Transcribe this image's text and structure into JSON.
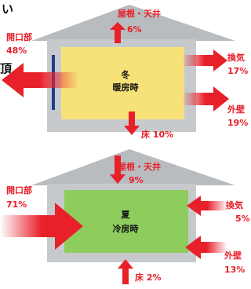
{
  "fragments": [
    "い",
    "頂"
  ],
  "winter": {
    "season": "冬",
    "mode": "暖房時",
    "roof": {
      "label": "屋根・天井",
      "value": "6%"
    },
    "opening": {
      "label": "開口部",
      "value": "48%"
    },
    "ventilation": {
      "label": "換気",
      "value": "17%"
    },
    "wall": {
      "label": "外壁",
      "value": "19%"
    },
    "floor": "床 10%"
  },
  "summer": {
    "season": "夏",
    "mode": "冷房時",
    "roof": {
      "label": "屋根・天井",
      "value": "9%"
    },
    "opening": {
      "label": "開口部",
      "value": "71%"
    },
    "ventilation": {
      "label": "換気",
      "value": "5%"
    },
    "wall": {
      "label": "外壁",
      "value": "13%"
    },
    "floor": "床 2%"
  }
}
